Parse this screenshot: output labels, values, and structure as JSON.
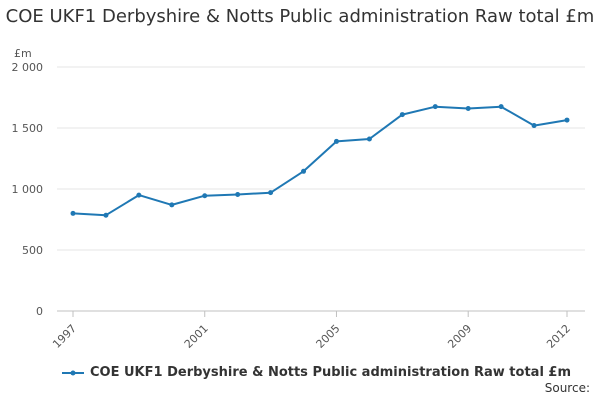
{
  "chart_data": {
    "type": "line",
    "title": "COE UKF1 Derbyshire & Notts Public administration Raw total £m",
    "ylabel": "£m",
    "xlabel": "",
    "ylim": [
      0,
      2000
    ],
    "yticks": [
      0,
      500,
      1000,
      1500,
      2000
    ],
    "ytick_labels": [
      "0",
      "500",
      "1 000",
      "1 500",
      "2 000"
    ],
    "xlim": [
      1997,
      2012
    ],
    "xticks": [
      1997,
      2001,
      2005,
      2009,
      2012
    ],
    "xtick_labels": [
      "1997",
      "2001",
      "2005",
      "2009",
      "2012"
    ],
    "grid": true,
    "legend_position": "bottom-left",
    "series": [
      {
        "name": "COE UKF1 Derbyshire & Notts Public administration Raw total £m",
        "color": "#1f78b4",
        "x": [
          1997,
          1998,
          1999,
          2000,
          2001,
          2002,
          2003,
          2004,
          2005,
          2006,
          2007,
          2008,
          2009,
          2010,
          2011,
          2012
        ],
        "values": [
          800,
          785,
          950,
          870,
          945,
          955,
          970,
          1145,
          1390,
          1410,
          1610,
          1675,
          1660,
          1675,
          1520,
          1565
        ]
      }
    ]
  },
  "footer": {
    "source_label": "Source:"
  }
}
